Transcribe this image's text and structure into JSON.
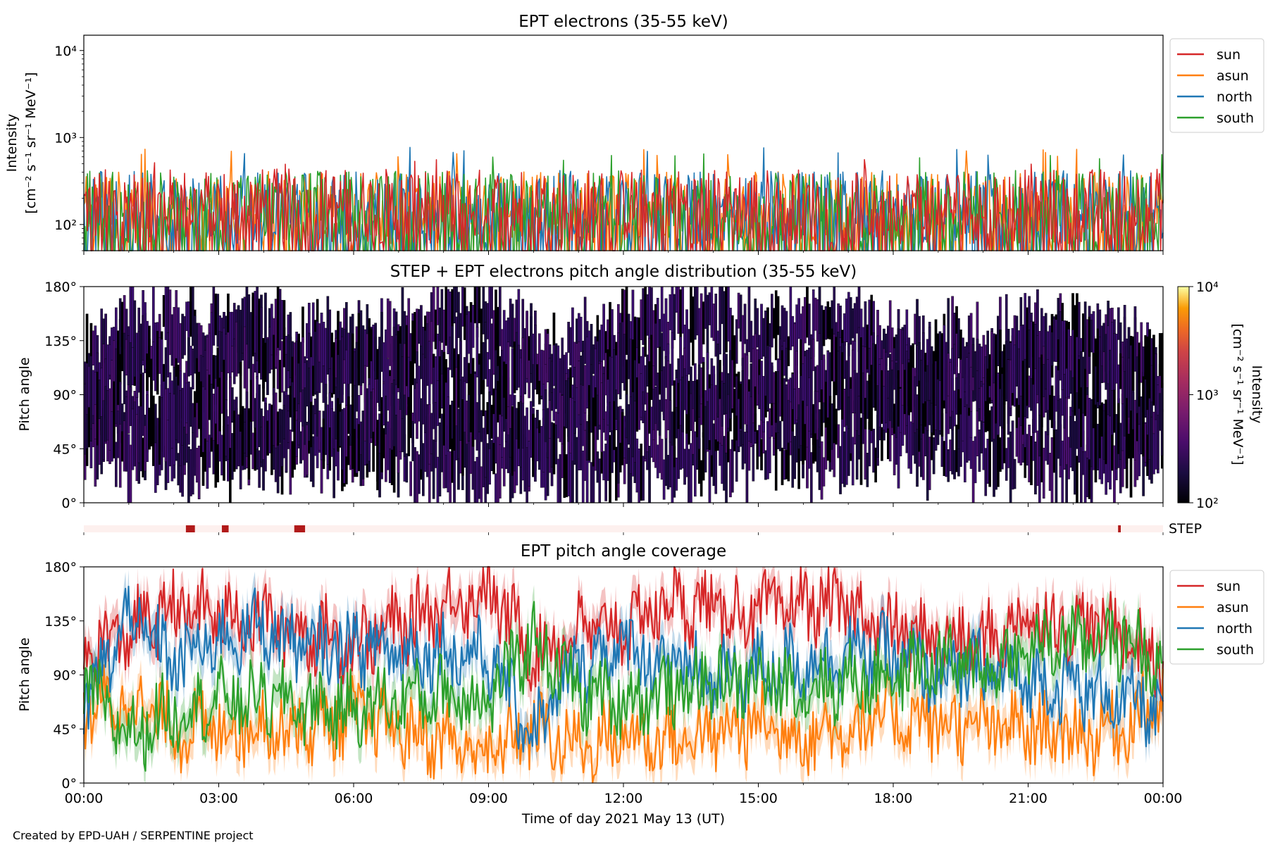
{
  "footer": "Created by EPD-UAH / SERPENTINE project",
  "colors": {
    "sun": "#d62728",
    "asun": "#ff7f0e",
    "north": "#1f77b4",
    "south": "#2ca02c",
    "step_bar": "#b11a1a",
    "step_bg": "#fdf0ee"
  },
  "chart_data": [
    {
      "id": "intensity",
      "type": "line",
      "title": "EPT electrons (35-55 keV)",
      "ylabel": "Intensity",
      "yunit": "[cm⁻² s⁻¹ sr⁻¹ MeV⁻¹]",
      "yscale": "log",
      "ylim": [
        50,
        15000
      ],
      "yticks": [
        {
          "value": 100,
          "label": "10²"
        },
        {
          "value": 1000,
          "label": "10³"
        },
        {
          "value": 10000,
          "label": "10⁴"
        }
      ],
      "xlim_hours": [
        0,
        24
      ],
      "legend_position": "right",
      "series": [
        {
          "name": "sun",
          "color": "#d62728",
          "typical": [
            60,
            450
          ],
          "max": 560
        },
        {
          "name": "asun",
          "color": "#ff7f0e",
          "typical": [
            60,
            420
          ],
          "max": 750
        },
        {
          "name": "north",
          "color": "#1f77b4",
          "typical": [
            60,
            430
          ],
          "max": 780
        },
        {
          "name": "south",
          "color": "#2ca02c",
          "typical": [
            60,
            430
          ],
          "max": 650
        }
      ]
    },
    {
      "id": "pad",
      "type": "heatmap",
      "title": "STEP + EPT electrons pitch angle distribution (35-55 keV)",
      "ylabel": "Pitch angle",
      "ylim": [
        0,
        180
      ],
      "yticks": [
        "0°",
        "45°",
        "90°",
        "135°",
        "180°"
      ],
      "colorbar": {
        "label": "Intensity",
        "unit": "[cm⁻² s⁻¹ sr⁻¹ MeV⁻¹]",
        "scale": "log",
        "range": [
          100,
          10000
        ],
        "ticks": [
          "10²",
          "10³",
          "10⁴"
        ],
        "colormap": "inferno"
      },
      "xlim_hours": [
        0,
        24
      ],
      "typical_intensity": [
        100,
        400
      ]
    },
    {
      "id": "step",
      "type": "bar",
      "label": "STEP",
      "xlim_hours": [
        0,
        24
      ],
      "intervals_hours": [
        [
          2.27,
          2.47
        ],
        [
          3.07,
          3.22
        ],
        [
          4.68,
          4.92
        ],
        [
          23.0,
          23.06
        ]
      ]
    },
    {
      "id": "coverage",
      "type": "line",
      "title": "EPT pitch angle coverage",
      "ylabel": "Pitch angle",
      "ylim": [
        0,
        180
      ],
      "yticks": [
        "0°",
        "45°",
        "90°",
        "135°",
        "180°"
      ],
      "xlabel": "Time of day 2021 May 13 (UT)",
      "xlim_hours": [
        0,
        24
      ],
      "xticks": [
        "00:00",
        "03:00",
        "06:00",
        "09:00",
        "12:00",
        "15:00",
        "18:00",
        "21:00",
        "00:00"
      ],
      "legend_position": "right",
      "series": [
        {
          "name": "sun",
          "color": "#d62728",
          "times_h": [
            0,
            1,
            2,
            3,
            4,
            5,
            6,
            7,
            8,
            9,
            10,
            11,
            12,
            13,
            14,
            15,
            16,
            17,
            18,
            19,
            20,
            21,
            22,
            23,
            24
          ],
          "values_deg": [
            110,
            125,
            145,
            140,
            135,
            125,
            118,
            130,
            150,
            160,
            110,
            125,
            130,
            150,
            145,
            140,
            150,
            145,
            125,
            120,
            115,
            140,
            130,
            130,
            95
          ]
        },
        {
          "name": "asun",
          "color": "#ff7f0e",
          "times_h": [
            0,
            1,
            2,
            3,
            4,
            5,
            6,
            7,
            8,
            9,
            10,
            11,
            12,
            13,
            14,
            15,
            16,
            17,
            18,
            19,
            20,
            21,
            22,
            23,
            24
          ],
          "values_deg": [
            60,
            70,
            45,
            45,
            50,
            45,
            55,
            45,
            35,
            25,
            45,
            30,
            40,
            35,
            40,
            50,
            40,
            45,
            55,
            50,
            45,
            45,
            40,
            45,
            70
          ]
        },
        {
          "name": "north",
          "color": "#1f77b4",
          "times_h": [
            0,
            1,
            2,
            3,
            4,
            5,
            6,
            7,
            8,
            9,
            10,
            11,
            12,
            13,
            14,
            15,
            16,
            17,
            18,
            19,
            20,
            21,
            22,
            23,
            24
          ],
          "values_deg": [
            60,
            140,
            100,
            120,
            130,
            110,
            115,
            110,
            110,
            105,
            40,
            100,
            115,
            100,
            85,
            95,
            100,
            110,
            105,
            90,
            95,
            85,
            80,
            70,
            60
          ]
        },
        {
          "name": "south",
          "color": "#2ca02c",
          "times_h": [
            0,
            1,
            2,
            3,
            4,
            5,
            6,
            7,
            8,
            9,
            10,
            11,
            12,
            13,
            14,
            15,
            16,
            17,
            18,
            19,
            20,
            21,
            22,
            23,
            24
          ],
          "values_deg": [
            80,
            40,
            60,
            70,
            70,
            65,
            60,
            70,
            75,
            70,
            120,
            75,
            70,
            75,
            85,
            85,
            80,
            85,
            90,
            100,
            95,
            110,
            120,
            120,
            105
          ]
        }
      ]
    }
  ]
}
